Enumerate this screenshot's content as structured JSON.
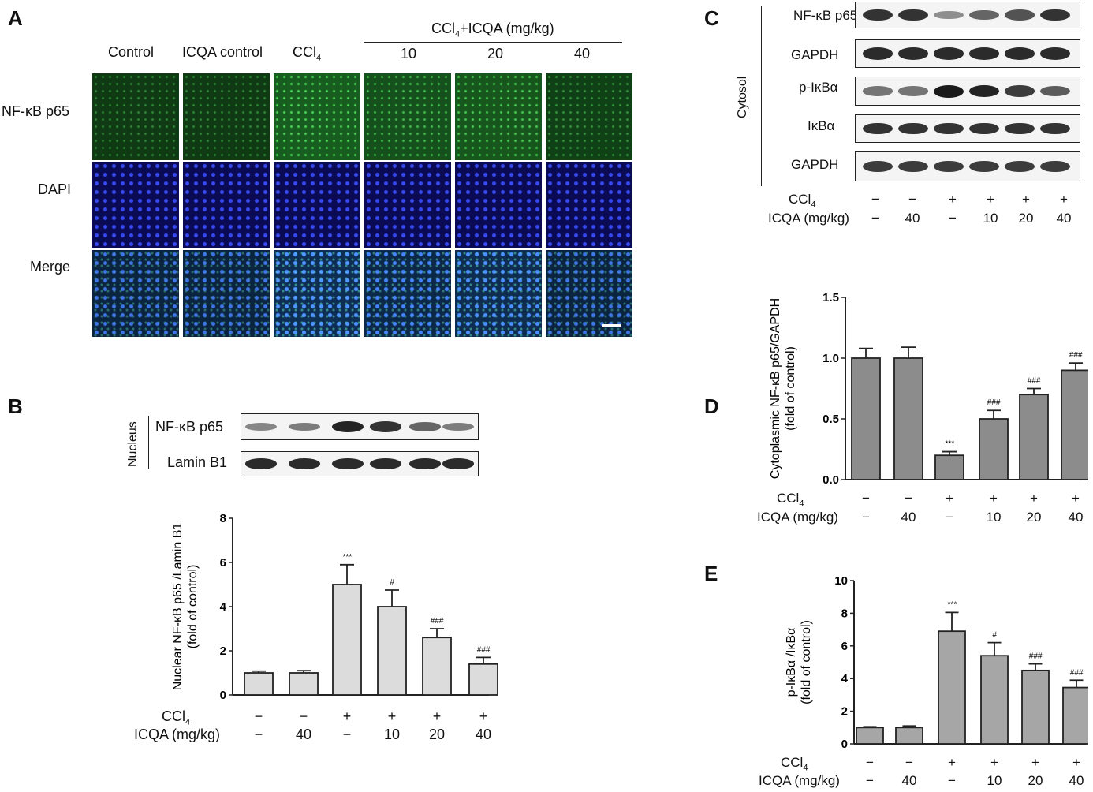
{
  "panels": {
    "a": "A",
    "b": "B",
    "c": "C",
    "d": "D",
    "e": "E"
  },
  "panel_a": {
    "columns": [
      "Control",
      "ICQA control"
    ],
    "ccl4": {
      "base": "CCl",
      "sub": "4"
    },
    "group_header": {
      "base": "CCl",
      "sub": "4",
      "rest": "+ICQA (mg/kg)"
    },
    "doses": [
      "10",
      "20",
      "40"
    ],
    "rows": [
      "NF-κB p65",
      "DAPI",
      "Merge"
    ]
  },
  "panel_b_blot": {
    "side_label": "Nucleus",
    "rows": [
      "NF-κB p65",
      "Lamin B1"
    ],
    "intensities": [
      [
        0.35,
        0.4,
        0.95,
        0.85,
        0.55,
        0.4
      ],
      [
        0.9,
        0.9,
        0.9,
        0.9,
        0.9,
        0.9
      ]
    ]
  },
  "panel_c_blot": {
    "side_label": "Cytosol",
    "rows": [
      "NF-κB p65",
      "GAPDH",
      "p-IκBα",
      "IκBα",
      "GAPDH"
    ],
    "intensities": [
      [
        0.85,
        0.85,
        0.3,
        0.55,
        0.65,
        0.85
      ],
      [
        0.9,
        0.9,
        0.9,
        0.9,
        0.9,
        0.9
      ],
      [
        0.45,
        0.45,
        1.0,
        0.95,
        0.8,
        0.6
      ],
      [
        0.85,
        0.85,
        0.85,
        0.85,
        0.85,
        0.85
      ],
      [
        0.8,
        0.8,
        0.8,
        0.8,
        0.8,
        0.8
      ]
    ]
  },
  "conditions": {
    "ccl4_label": {
      "base": "CCl",
      "sub": "4"
    },
    "icqa_label": "ICQA (mg/kg)",
    "ccl4": [
      "−",
      "−",
      "+",
      "+",
      "+",
      "+"
    ],
    "icqa": [
      "−",
      "40",
      "−",
      "10",
      "20",
      "40"
    ]
  },
  "chart_data": [
    {
      "id": "B",
      "type": "bar",
      "ylabel_lines": [
        "Nuclear NF-κB p65 /Lamin B1",
        "(fold of control)"
      ],
      "ylim": [
        0,
        8
      ],
      "yticks": [
        0,
        2,
        4,
        6,
        8
      ],
      "values": [
        1.0,
        1.0,
        5.0,
        4.0,
        2.6,
        1.4
      ],
      "errors": [
        0.08,
        0.1,
        0.9,
        0.75,
        0.4,
        0.3
      ],
      "significance": [
        "",
        "",
        "***",
        "#",
        "###",
        "###"
      ],
      "bar_color": "#dcdcdc"
    },
    {
      "id": "D",
      "type": "bar",
      "ylabel_lines": [
        "Cytoplasmic  NF-κB p65/GAPDH",
        "(fold of control)"
      ],
      "ylim": [
        0,
        1.5
      ],
      "yticks": [
        0.0,
        0.5,
        1.0,
        1.5
      ],
      "values": [
        1.0,
        1.0,
        0.2,
        0.5,
        0.7,
        0.9
      ],
      "errors": [
        0.08,
        0.09,
        0.03,
        0.07,
        0.05,
        0.06
      ],
      "significance": [
        "",
        "",
        "***",
        "###",
        "###",
        "###"
      ],
      "bar_color": "#8c8c8c"
    },
    {
      "id": "E",
      "type": "bar",
      "ylabel_lines": [
        "p-IκBα /IκBα",
        "(fold of control)"
      ],
      "ylim": [
        0,
        10
      ],
      "yticks": [
        0,
        2,
        4,
        6,
        8,
        10
      ],
      "values": [
        1.0,
        1.0,
        6.9,
        5.4,
        4.5,
        3.45
      ],
      "errors": [
        0.05,
        0.1,
        1.15,
        0.8,
        0.4,
        0.45
      ],
      "significance": [
        "",
        "",
        "***",
        "#",
        "###",
        "###"
      ],
      "bar_color": "#a6a6a6"
    }
  ]
}
